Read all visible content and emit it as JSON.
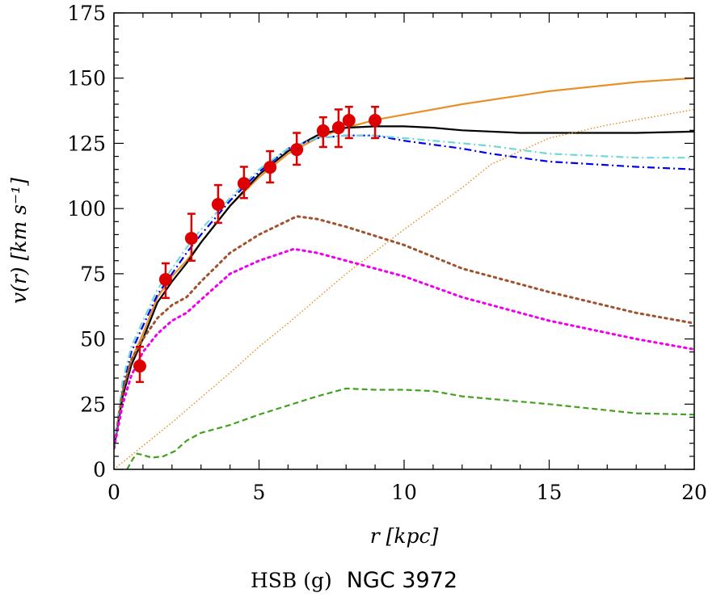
{
  "chart_data": {
    "type": "line",
    "xlabel": "r [kpc]",
    "ylabel": "v(r) [km s⁻¹]",
    "subtitle_left": "HSB (g)",
    "subtitle_right": "NGC 3972",
    "xlim": [
      0,
      20
    ],
    "ylim": [
      0,
      175
    ],
    "x_ticks": [
      0,
      5,
      10,
      15,
      20
    ],
    "y_ticks": [
      0,
      25,
      50,
      75,
      100,
      125,
      150,
      175
    ],
    "grid": false,
    "legend": "none",
    "observed": {
      "color": "#dd0000",
      "r": [
        0.89,
        1.78,
        2.67,
        3.59,
        4.48,
        5.38,
        6.3,
        7.21,
        7.74,
        8.1,
        9.0
      ],
      "v": [
        39.6,
        72.8,
        88.6,
        101.6,
        109.6,
        115.8,
        122.6,
        129.8,
        131.0,
        133.8,
        133.8
      ],
      "err_low": [
        33.5,
        65.7,
        80,
        94.5,
        104,
        110,
        116.8,
        123.6,
        123.6,
        127,
        127
      ],
      "err_high": [
        47,
        79,
        98,
        109,
        116,
        122,
        129,
        135,
        138,
        139,
        139
      ]
    },
    "series": [
      {
        "color": "#e8902a",
        "style": "solid",
        "r": [
          0,
          0.3,
          0.6,
          1,
          1.5,
          2,
          2.5,
          3,
          4,
          5,
          6,
          7,
          8,
          9,
          10,
          12,
          15,
          18,
          20
        ],
        "v": [
          8,
          30,
          42,
          52,
          66,
          74,
          80,
          87,
          101,
          112,
          121,
          127,
          131,
          134,
          136,
          140,
          145,
          148.5,
          150
        ]
      },
      {
        "color": "#000000",
        "style": "solid",
        "r": [
          0,
          0.3,
          0.6,
          1,
          1.5,
          2,
          2.5,
          3,
          4,
          5,
          6,
          7,
          8,
          9,
          10,
          11,
          12,
          14,
          16,
          18,
          20
        ],
        "v": [
          8,
          28,
          40,
          50,
          64,
          72,
          79,
          87,
          101,
          113,
          122,
          128,
          131,
          131.5,
          131.5,
          131,
          130,
          129,
          129,
          129,
          129.5
        ]
      },
      {
        "color": "#0000ee",
        "style": "dashdot",
        "r": [
          0,
          0.3,
          0.6,
          1,
          1.5,
          2,
          2.5,
          3,
          4,
          5,
          6,
          7,
          8,
          9,
          10,
          12,
          13,
          15,
          18,
          20
        ],
        "v": [
          8,
          32,
          45,
          55,
          67,
          75,
          83,
          90,
          103,
          114,
          123,
          127,
          128,
          128,
          126,
          123,
          121,
          118,
          116,
          115
        ]
      },
      {
        "color": "#70d8d8",
        "style": "dashdot",
        "r": [
          0,
          0.3,
          0.6,
          1,
          1.5,
          2,
          2.5,
          3,
          4,
          5,
          6,
          7,
          8,
          9,
          10,
          12,
          13,
          15,
          18,
          20
        ],
        "v": [
          8,
          34,
          47,
          57,
          69,
          77,
          85,
          92,
          104,
          115,
          123,
          127,
          128,
          128,
          127,
          125,
          124,
          121,
          119.5,
          119.5
        ]
      },
      {
        "color": "#a0522d",
        "style": "dotted",
        "r": [
          0,
          0.3,
          0.6,
          1,
          1.5,
          2,
          2.5,
          3,
          4,
          5,
          6.3,
          7,
          8,
          10,
          12,
          15,
          18,
          20
        ],
        "v": [
          8,
          30,
          42,
          50,
          58,
          63,
          66,
          72,
          83,
          90,
          97,
          96,
          93,
          86,
          77,
          68,
          60,
          56
        ]
      },
      {
        "color": "#ee00ee",
        "style": "dotted",
        "r": [
          0,
          0.3,
          0.6,
          1,
          1.5,
          2,
          2.5,
          3,
          4,
          5,
          6.2,
          7,
          8,
          10,
          12,
          15,
          18,
          20
        ],
        "v": [
          8,
          25,
          36,
          45,
          52,
          57,
          60,
          65,
          75,
          80,
          84.5,
          83,
          80,
          74,
          66,
          57,
          50,
          46
        ]
      },
      {
        "color": "#44a020",
        "style": "dashed",
        "r": [
          0.45,
          0.65,
          0.8,
          1.0,
          1.3,
          1.7,
          2.1,
          2.5,
          3,
          4,
          5,
          6,
          7,
          8,
          9,
          10,
          11,
          12,
          15,
          18,
          20
        ],
        "v": [
          0,
          4,
          6,
          5.5,
          4.5,
          5,
          7,
          11,
          14,
          17,
          21,
          24.5,
          28,
          31,
          30.5,
          30.5,
          30,
          28,
          25,
          21.5,
          21
        ]
      },
      {
        "color": "#e8902a",
        "style": "finedot",
        "r": [
          0,
          2,
          4,
          5,
          6,
          8,
          10,
          12,
          13,
          15,
          17,
          20
        ],
        "v": [
          0,
          18,
          37,
          47,
          56,
          75,
          92,
          108,
          117,
          127,
          132,
          138
        ]
      }
    ]
  }
}
